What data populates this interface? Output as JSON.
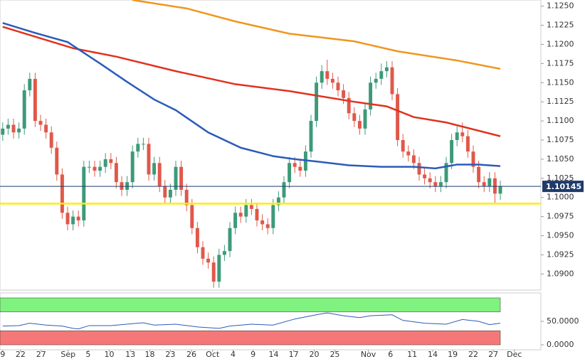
{
  "chart_data": [
    {
      "type": "candlestick",
      "up_color": "#3d9a78",
      "down_color": "#e0584a",
      "open": [
        1.1082,
        1.109,
        1.1095,
        1.1085,
        1.109,
        1.114,
        1.1155,
        1.11,
        1.1095,
        1.1085,
        1.1065,
        1.103,
        1.098,
        1.0965,
        1.0975,
        1.097,
        1.104,
        1.104,
        1.1035,
        1.104,
        1.105,
        1.1045,
        1.102,
        1.101,
        1.102,
        1.106,
        1.107,
        1.107,
        1.103,
        1.1045,
        1.1015,
        1.1,
        1.101,
        1.104,
        1.101,
        1.099,
        1.096,
        1.0935,
        1.092,
        1.0915,
        1.089,
        1.0925,
        1.093,
        1.096,
        1.098,
        1.0975,
        1.099,
        1.0985,
        1.097,
        1.0965,
        1.096,
        1.099,
        1.1,
        1.102,
        1.1045,
        1.104,
        1.1035,
        1.106,
        1.11,
        1.115,
        1.1165,
        1.1155,
        1.115,
        1.114,
        1.113,
        1.111,
        1.11,
        1.109,
        1.1115,
        1.115,
        1.1155,
        1.1165,
        1.117,
        1.1135,
        1.1075,
        1.106,
        1.1055,
        1.1045,
        1.103,
        1.1025,
        1.102,
        1.1015,
        1.102,
        1.1045,
        1.1075,
        1.1085,
        1.108,
        1.106,
        1.104,
        1.102,
        1.1015,
        1.1025,
        1.1005
      ],
      "high": [
        1.1098,
        1.1103,
        1.1103,
        1.1098,
        1.1148,
        1.1163,
        1.1163,
        1.1108,
        1.1103,
        1.1093,
        1.1073,
        1.1038,
        1.0988,
        1.0983,
        1.0983,
        1.1048,
        1.1048,
        1.1048,
        1.1048,
        1.1058,
        1.1058,
        1.1053,
        1.1028,
        1.1028,
        1.1068,
        1.1078,
        1.1078,
        1.1078,
        1.1053,
        1.1053,
        1.1023,
        1.1018,
        1.1048,
        1.1048,
        1.1018,
        1.0998,
        1.0968,
        1.0943,
        1.0928,
        1.0923,
        1.0933,
        1.0938,
        1.0968,
        1.0988,
        1.0988,
        1.0998,
        1.0998,
        1.0993,
        1.0978,
        1.0973,
        1.0998,
        1.1008,
        1.1028,
        1.1053,
        1.1053,
        1.1048,
        1.1068,
        1.1108,
        1.1158,
        1.1173,
        1.118,
        1.1163,
        1.1158,
        1.1148,
        1.1138,
        1.1118,
        1.1108,
        1.1123,
        1.1158,
        1.1163,
        1.1175,
        1.1178,
        1.1178,
        1.1143,
        1.1083,
        1.1068,
        1.1063,
        1.1053,
        1.1038,
        1.1033,
        1.1028,
        1.1028,
        1.1053,
        1.1083,
        1.1093,
        1.1098,
        1.1088,
        1.1068,
        1.1048,
        1.1028,
        1.1033,
        1.1033,
        1.1022
      ],
      "low": [
        1.1074,
        1.1082,
        1.1077,
        1.1077,
        1.1082,
        1.1132,
        1.1092,
        1.1087,
        1.1077,
        1.1057,
        1.1022,
        1.0972,
        1.0957,
        1.0957,
        1.0962,
        1.0962,
        1.1032,
        1.1027,
        1.1027,
        1.1032,
        1.1037,
        1.1012,
        1.1002,
        1.1002,
        1.1012,
        1.1052,
        1.1062,
        1.1022,
        1.1022,
        1.1007,
        1.0992,
        1.0992,
        1.1002,
        1.1002,
        1.0982,
        1.0952,
        1.0927,
        1.0912,
        1.0907,
        1.0882,
        1.0882,
        1.0917,
        1.0922,
        1.0952,
        1.0967,
        1.0967,
        1.0977,
        1.0962,
        1.0957,
        1.0952,
        1.0952,
        1.0982,
        1.0992,
        1.1012,
        1.1032,
        1.1027,
        1.1027,
        1.1052,
        1.1092,
        1.1142,
        1.1147,
        1.1142,
        1.1132,
        1.1122,
        1.1102,
        1.1092,
        1.1082,
        1.1082,
        1.1107,
        1.1142,
        1.1147,
        1.1157,
        1.1127,
        1.1067,
        1.1052,
        1.1047,
        1.1037,
        1.1022,
        1.1017,
        1.1012,
        1.1007,
        1.1007,
        1.1012,
        1.1037,
        1.1067,
        1.1072,
        1.1052,
        1.1032,
        1.1012,
        1.1007,
        1.1007,
        1.0993,
        1.0997
      ],
      "close": [
        1.109,
        1.1095,
        1.1085,
        1.109,
        1.114,
        1.1155,
        1.11,
        1.1095,
        1.1085,
        1.1065,
        1.103,
        1.098,
        1.0965,
        1.0975,
        1.097,
        1.104,
        1.104,
        1.1035,
        1.104,
        1.105,
        1.1045,
        1.102,
        1.101,
        1.102,
        1.106,
        1.107,
        1.107,
        1.103,
        1.1045,
        1.1015,
        1.1,
        1.101,
        1.104,
        1.101,
        1.099,
        1.096,
        1.0935,
        1.092,
        1.0915,
        1.089,
        1.0925,
        1.093,
        1.096,
        1.098,
        1.0975,
        1.099,
        1.0985,
        1.097,
        1.0965,
        1.096,
        1.099,
        1.1,
        1.102,
        1.1045,
        1.104,
        1.1035,
        1.106,
        1.11,
        1.115,
        1.1165,
        1.1155,
        1.115,
        1.114,
        1.113,
        1.111,
        1.11,
        1.109,
        1.1115,
        1.115,
        1.1155,
        1.1165,
        1.117,
        1.1135,
        1.1075,
        1.106,
        1.1055,
        1.1045,
        1.103,
        1.1025,
        1.102,
        1.1015,
        1.102,
        1.1045,
        1.1075,
        1.1085,
        1.108,
        1.106,
        1.104,
        1.102,
        1.1015,
        1.1025,
        1.1005,
        1.10145
      ],
      "lines": [
        {
          "color": "#f0961e",
          "x": [
            24,
            34,
            43,
            53,
            65,
            73,
            84,
            92
          ],
          "values": [
            1.1258,
            1.1247,
            1.123,
            1.1214,
            1.1204,
            1.1191,
            1.1179,
            1.1168
          ]
        },
        {
          "color": "#e0321e",
          "x": [
            0,
            13,
            21,
            32,
            43,
            53,
            65,
            71,
            76,
            82,
            92
          ],
          "values": [
            1.1223,
            1.1195,
            1.1184,
            1.1165,
            1.1148,
            1.1139,
            1.1125,
            1.1119,
            1.1105,
            1.1098,
            1.108
          ]
        },
        {
          "color": "#2a5cb8",
          "x": [
            0,
            6,
            12,
            18,
            23,
            28,
            32,
            38,
            44,
            50,
            54,
            58,
            64,
            70,
            76,
            80,
            84,
            88,
            92
          ],
          "values": [
            1.1228,
            1.1215,
            1.1203,
            1.1175,
            1.1151,
            1.1128,
            1.1114,
            1.1085,
            1.1065,
            1.1054,
            1.105,
            1.1047,
            1.1042,
            1.104,
            1.104,
            1.1038,
            1.1043,
            1.1043,
            1.1041
          ]
        }
      ],
      "hline": {
        "value": 1.0992,
        "color": "#ffee00"
      },
      "last": 1.10145,
      "last_color": "#1f3b6b",
      "xlim": [
        -0.5,
        99.5
      ],
      "ylim": [
        1.0879,
        1.1258
      ],
      "yticks": [
        {
          "value": 1.09,
          "label": "1.0900"
        },
        {
          "value": 1.0925,
          "label": "1.0925"
        },
        {
          "value": 1.095,
          "label": "1.0950"
        },
        {
          "value": 1.0975,
          "label": "1.0975"
        },
        {
          "value": 1.1,
          "label": "1.1000"
        },
        {
          "value": 1.1025,
          "label": "1.1025"
        },
        {
          "value": 1.105,
          "label": "1.1050"
        },
        {
          "value": 1.1075,
          "label": "1.1075"
        },
        {
          "value": 1.11,
          "label": "1.1100"
        },
        {
          "value": 1.1125,
          "label": "1.1125"
        },
        {
          "value": 1.115,
          "label": "1.1150"
        },
        {
          "value": 1.1175,
          "label": "1.1175"
        },
        {
          "value": 1.12,
          "label": "1.1200"
        },
        {
          "value": 1.1225,
          "label": "1.1225"
        },
        {
          "value": 1.125,
          "label": "1.1250"
        }
      ],
      "xticks": [
        {
          "value": 0,
          "label": "9"
        },
        {
          "value": 3.3,
          "label": "22"
        },
        {
          "value": 7.1,
          "label": "27"
        },
        {
          "value": 12.1,
          "label": "Sep"
        },
        {
          "value": 15.8,
          "label": "5"
        },
        {
          "value": 19.7,
          "label": "10"
        },
        {
          "value": 23.6,
          "label": "13"
        },
        {
          "value": 27.2,
          "label": "18"
        },
        {
          "value": 31,
          "label": "23"
        },
        {
          "value": 34.9,
          "label": "26"
        },
        {
          "value": 38.8,
          "label": "Oct"
        },
        {
          "value": 42.6,
          "label": "4"
        },
        {
          "value": 46.3,
          "label": "9"
        },
        {
          "value": 50.1,
          "label": "14"
        },
        {
          "value": 53.8,
          "label": "17"
        },
        {
          "value": 57.6,
          "label": "20"
        },
        {
          "value": 61.4,
          "label": "25"
        },
        {
          "value": 67.6,
          "label": "Nov"
        },
        {
          "value": 71.7,
          "label": "6"
        },
        {
          "value": 75.7,
          "label": "11"
        },
        {
          "value": 79.5,
          "label": "14"
        },
        {
          "value": 83.2,
          "label": "19"
        },
        {
          "value": 87,
          "label": "22"
        },
        {
          "value": 90.7,
          "label": "27"
        },
        {
          "value": 94.6,
          "label": "Dec"
        }
      ]
    },
    {
      "type": "line",
      "color": "#2a5cb8",
      "x": [
        0,
        3,
        5,
        8,
        11,
        13,
        14,
        16,
        20,
        24,
        26,
        28,
        32,
        36,
        40,
        42,
        46,
        50,
        54,
        58,
        60,
        63,
        66,
        68,
        72,
        74,
        78,
        82,
        85,
        88,
        90,
        92
      ],
      "values": [
        40,
        41,
        46,
        42,
        40,
        35,
        34,
        41,
        41,
        45,
        47,
        42,
        44,
        38,
        35,
        40,
        44,
        42,
        55,
        64,
        68,
        62,
        58,
        62,
        64,
        52,
        46,
        44,
        54,
        50,
        43,
        46
      ],
      "bands": [
        {
          "range": [
            70,
            100
          ],
          "color": "#7ff27f"
        },
        {
          "range": [
            0,
            30
          ],
          "color": "#f57878"
        }
      ],
      "xlim": [
        -0.5,
        99.5
      ],
      "ylim": [
        -10.6,
        110.6
      ],
      "yticks": [
        {
          "value": 0,
          "label": "0.0000"
        },
        {
          "value": 50,
          "label": "50.0000"
        }
      ]
    }
  ]
}
